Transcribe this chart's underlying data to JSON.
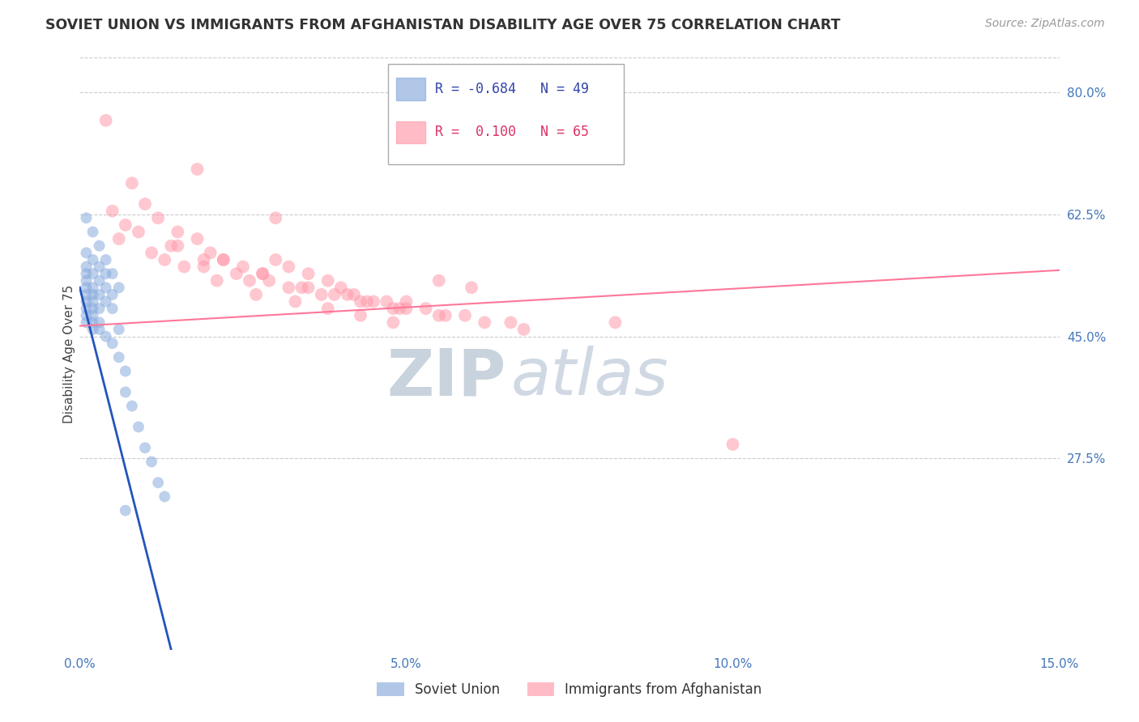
{
  "title": "SOVIET UNION VS IMMIGRANTS FROM AFGHANISTAN DISABILITY AGE OVER 75 CORRELATION CHART",
  "source": "Source: ZipAtlas.com",
  "ylabel": "Disability Age Over 75",
  "xlim": [
    0.0,
    0.15
  ],
  "ylim": [
    0.0,
    0.85
  ],
  "xticks": [
    0.0,
    0.05,
    0.1,
    0.15
  ],
  "xtick_labels": [
    "0.0%",
    "5.0%",
    "10.0%",
    "15.0%"
  ],
  "yticks_right": [
    0.275,
    0.45,
    0.625,
    0.8
  ],
  "ytick_labels_right": [
    "27.5%",
    "45.0%",
    "62.5%",
    "80.0%"
  ],
  "grid_color": "#cccccc",
  "background_color": "#ffffff",
  "blue_color": "#88aadd",
  "pink_color": "#ff99aa",
  "blue_line_color": "#2255bb",
  "pink_line_color": "#ff7799",
  "R_blue": -0.684,
  "N_blue": 49,
  "R_pink": 0.1,
  "N_pink": 65,
  "blue_scatter_x": [
    0.001,
    0.001,
    0.001,
    0.001,
    0.001,
    0.001,
    0.001,
    0.001,
    0.001,
    0.001,
    0.002,
    0.002,
    0.002,
    0.002,
    0.002,
    0.002,
    0.002,
    0.002,
    0.002,
    0.003,
    0.003,
    0.003,
    0.003,
    0.003,
    0.003,
    0.004,
    0.004,
    0.004,
    0.004,
    0.005,
    0.005,
    0.005,
    0.006,
    0.006,
    0.007,
    0.007,
    0.008,
    0.009,
    0.01,
    0.011,
    0.012,
    0.013,
    0.001,
    0.002,
    0.003,
    0.004,
    0.005,
    0.006,
    0.007
  ],
  "blue_scatter_y": [
    0.57,
    0.55,
    0.54,
    0.53,
    0.52,
    0.51,
    0.5,
    0.49,
    0.48,
    0.47,
    0.56,
    0.54,
    0.52,
    0.51,
    0.5,
    0.49,
    0.48,
    0.47,
    0.46,
    0.55,
    0.53,
    0.51,
    0.49,
    0.47,
    0.46,
    0.54,
    0.52,
    0.5,
    0.45,
    0.51,
    0.49,
    0.44,
    0.46,
    0.42,
    0.4,
    0.37,
    0.35,
    0.32,
    0.29,
    0.27,
    0.24,
    0.22,
    0.62,
    0.6,
    0.58,
    0.56,
    0.54,
    0.52,
    0.2
  ],
  "pink_scatter_x": [
    0.005,
    0.008,
    0.01,
    0.012,
    0.015,
    0.018,
    0.02,
    0.022,
    0.025,
    0.028,
    0.03,
    0.032,
    0.035,
    0.038,
    0.04,
    0.042,
    0.045,
    0.048,
    0.05,
    0.055,
    0.007,
    0.014,
    0.019,
    0.024,
    0.029,
    0.034,
    0.039,
    0.044,
    0.05,
    0.056,
    0.006,
    0.011,
    0.016,
    0.021,
    0.027,
    0.033,
    0.038,
    0.043,
    0.048,
    0.06,
    0.009,
    0.015,
    0.022,
    0.028,
    0.035,
    0.041,
    0.047,
    0.053,
    0.059,
    0.066,
    0.013,
    0.019,
    0.026,
    0.032,
    0.037,
    0.043,
    0.049,
    0.055,
    0.062,
    0.068,
    0.004,
    0.018,
    0.03,
    0.082,
    0.1
  ],
  "pink_scatter_y": [
    0.63,
    0.67,
    0.64,
    0.62,
    0.6,
    0.59,
    0.57,
    0.56,
    0.55,
    0.54,
    0.56,
    0.55,
    0.54,
    0.53,
    0.52,
    0.51,
    0.5,
    0.49,
    0.5,
    0.53,
    0.61,
    0.58,
    0.56,
    0.54,
    0.53,
    0.52,
    0.51,
    0.5,
    0.49,
    0.48,
    0.59,
    0.57,
    0.55,
    0.53,
    0.51,
    0.5,
    0.49,
    0.48,
    0.47,
    0.52,
    0.6,
    0.58,
    0.56,
    0.54,
    0.52,
    0.51,
    0.5,
    0.49,
    0.48,
    0.47,
    0.56,
    0.55,
    0.53,
    0.52,
    0.51,
    0.5,
    0.49,
    0.48,
    0.47,
    0.46,
    0.76,
    0.69,
    0.62,
    0.47,
    0.295
  ],
  "blue_line_x": [
    0.0,
    0.014
  ],
  "blue_line_y": [
    0.52,
    0.0
  ],
  "pink_line_x": [
    0.0,
    0.15
  ],
  "pink_line_y": [
    0.465,
    0.545
  ],
  "watermark_zip": "ZIP",
  "watermark_atlas": "atlas",
  "legend_label_blue": "Soviet Union",
  "legend_label_pink": "Immigrants from Afghanistan"
}
